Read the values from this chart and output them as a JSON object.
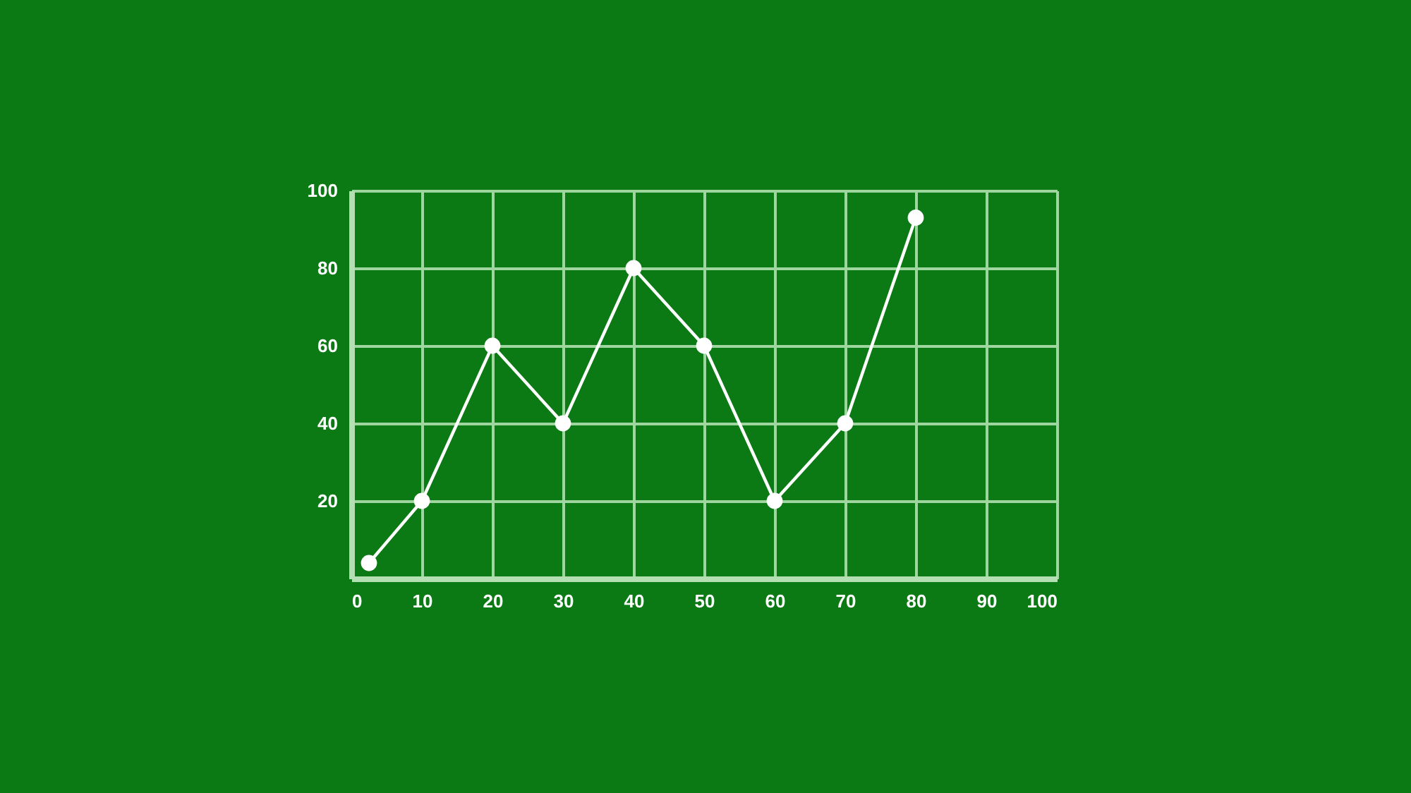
{
  "chart_data": {
    "type": "line",
    "x": [
      2.5,
      10,
      20,
      30,
      40,
      50,
      60,
      70,
      80
    ],
    "series": [
      {
        "color": "#ffffff",
        "values": [
          4,
          20,
          60,
          40,
          80,
          60,
          20,
          40,
          93
        ]
      }
    ],
    "xlim": [
      0,
      100
    ],
    "ylim": [
      0,
      100
    ],
    "xticks": [
      0,
      10,
      20,
      30,
      40,
      50,
      60,
      70,
      80,
      90,
      100
    ],
    "yticks": [
      20,
      40,
      60,
      80,
      100
    ],
    "grid": true,
    "marker": "circle",
    "line_style": "solid"
  }
}
